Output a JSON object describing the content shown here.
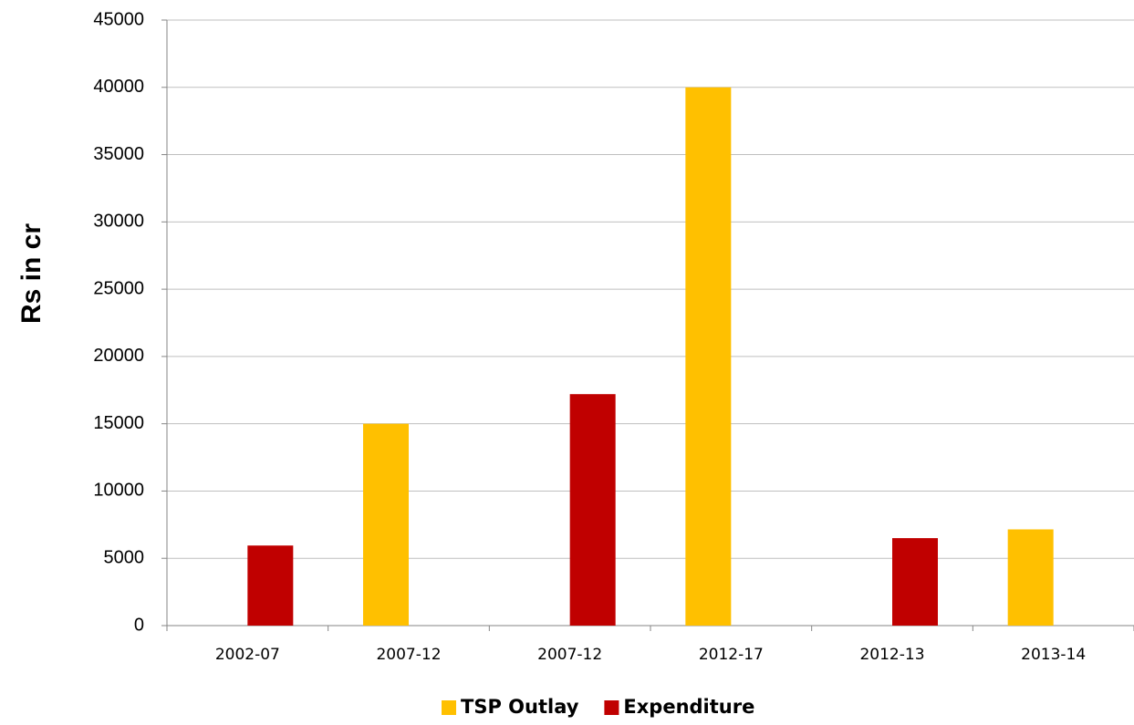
{
  "chart_data": {
    "type": "bar",
    "y_label": "Rs in cr",
    "categories": [
      "2002-07",
      "2007-12",
      "2007-12",
      "2012-17",
      "2012-13",
      "2013-14"
    ],
    "series": [
      {
        "name": "TSP Outlay",
        "color": "#ffc000",
        "values": [
          null,
          15000,
          null,
          40000,
          null,
          7150
        ]
      },
      {
        "name": "Expenditure",
        "color": "#c00000",
        "values": [
          5950,
          null,
          17200,
          null,
          6500,
          null
        ]
      }
    ],
    "ylim": [
      0,
      45000
    ],
    "yticks": [
      0,
      5000,
      10000,
      15000,
      20000,
      25000,
      30000,
      35000,
      40000,
      45000
    ],
    "grid": true,
    "legend": "bottom"
  }
}
